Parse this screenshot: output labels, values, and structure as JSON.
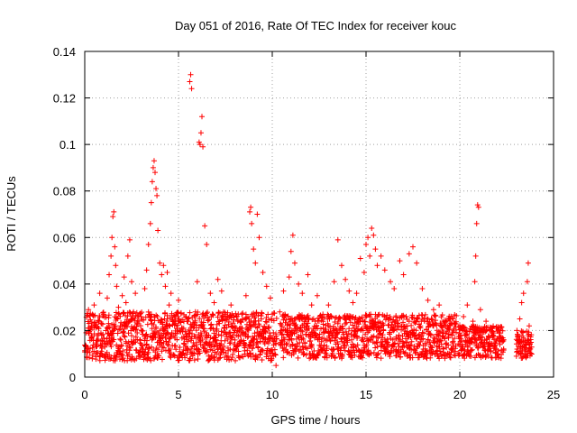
{
  "chart_data": {
    "type": "scatter",
    "title": "Day 051 of 2016, Rate Of TEC Index for receiver kouc",
    "xlabel": "GPS time / hours",
    "ylabel": "ROTI / TECUs",
    "xlim": [
      0,
      25
    ],
    "ylim": [
      0,
      0.14
    ],
    "xticks": [
      0,
      5,
      10,
      15,
      20,
      25
    ],
    "yticks": [
      0,
      0.02,
      0.04,
      0.06,
      0.08,
      0.1,
      0.12,
      0.14
    ],
    "xtick_labels": [
      "0",
      "5",
      "10",
      "15",
      "20",
      "25"
    ],
    "ytick_labels": [
      "0",
      "0.02",
      "0.04",
      "0.06",
      "0.08",
      "0.1",
      "0.12",
      "0.14"
    ],
    "grid": true,
    "marker": "+",
    "color": "#ff0000",
    "series": [
      {
        "name": "ROTI",
        "points": [
          [
            0.2,
            0.029
          ],
          [
            0.3,
            0.021
          ],
          [
            0.5,
            0.031
          ],
          [
            0.6,
            0.013
          ],
          [
            0.8,
            0.036
          ],
          [
            0.9,
            0.018
          ],
          [
            1.0,
            0.027
          ],
          [
            1.2,
            0.034
          ],
          [
            1.3,
            0.044
          ],
          [
            1.4,
            0.052
          ],
          [
            1.45,
            0.06
          ],
          [
            1.5,
            0.069
          ],
          [
            1.55,
            0.071
          ],
          [
            1.6,
            0.056
          ],
          [
            1.65,
            0.048
          ],
          [
            1.7,
            0.039
          ],
          [
            1.8,
            0.03
          ],
          [
            1.9,
            0.022
          ],
          [
            2.0,
            0.035
          ],
          [
            2.1,
            0.043
          ],
          [
            2.2,
            0.032
          ],
          [
            2.3,
            0.052
          ],
          [
            2.4,
            0.059
          ],
          [
            2.5,
            0.041
          ],
          [
            2.6,
            0.028
          ],
          [
            2.7,
            0.036
          ],
          [
            2.8,
            0.019
          ],
          [
            3.0,
            0.026
          ],
          [
            3.2,
            0.038
          ],
          [
            3.3,
            0.046
          ],
          [
            3.4,
            0.057
          ],
          [
            3.5,
            0.066
          ],
          [
            3.55,
            0.075
          ],
          [
            3.6,
            0.084
          ],
          [
            3.65,
            0.09
          ],
          [
            3.7,
            0.093
          ],
          [
            3.75,
            0.088
          ],
          [
            3.8,
            0.081
          ],
          [
            3.85,
            0.078
          ],
          [
            3.9,
            0.063
          ],
          [
            4.0,
            0.049
          ],
          [
            4.1,
            0.044
          ],
          [
            4.2,
            0.048
          ],
          [
            4.3,
            0.039
          ],
          [
            4.4,
            0.045
          ],
          [
            4.5,
            0.031
          ],
          [
            4.6,
            0.036
          ],
          [
            4.8,
            0.026
          ],
          [
            5.0,
            0.033
          ],
          [
            5.2,
            0.021
          ],
          [
            5.5,
            0.025
          ],
          [
            5.6,
            0.127
          ],
          [
            5.65,
            0.13
          ],
          [
            5.7,
            0.124
          ],
          [
            5.9,
            0.028
          ],
          [
            6.0,
            0.041
          ],
          [
            6.1,
            0.101
          ],
          [
            6.15,
            0.1
          ],
          [
            6.2,
            0.105
          ],
          [
            6.25,
            0.112
          ],
          [
            6.3,
            0.099
          ],
          [
            6.4,
            0.065
          ],
          [
            6.5,
            0.057
          ],
          [
            6.7,
            0.036
          ],
          [
            6.9,
            0.032
          ],
          [
            7.1,
            0.042
          ],
          [
            7.3,
            0.037
          ],
          [
            7.5,
            0.027
          ],
          [
            7.8,
            0.031
          ],
          [
            8.1,
            0.026
          ],
          [
            8.4,
            0.021
          ],
          [
            8.6,
            0.035
          ],
          [
            8.8,
            0.071
          ],
          [
            8.85,
            0.073
          ],
          [
            8.9,
            0.066
          ],
          [
            9.0,
            0.055
          ],
          [
            9.1,
            0.049
          ],
          [
            9.2,
            0.07
          ],
          [
            9.3,
            0.06
          ],
          [
            9.5,
            0.045
          ],
          [
            9.7,
            0.039
          ],
          [
            9.9,
            0.034
          ],
          [
            10.2,
            0.005
          ],
          [
            10.4,
            0.028
          ],
          [
            10.6,
            0.037
          ],
          [
            10.9,
            0.043
          ],
          [
            11.0,
            0.054
          ],
          [
            11.1,
            0.061
          ],
          [
            11.2,
            0.049
          ],
          [
            11.4,
            0.04
          ],
          [
            11.6,
            0.036
          ],
          [
            11.9,
            0.044
          ],
          [
            12.1,
            0.031
          ],
          [
            12.4,
            0.035
          ],
          [
            12.7,
            0.027
          ],
          [
            13.0,
            0.031
          ],
          [
            13.3,
            0.041
          ],
          [
            13.5,
            0.059
          ],
          [
            13.7,
            0.048
          ],
          [
            13.9,
            0.042
          ],
          [
            14.1,
            0.037
          ],
          [
            14.3,
            0.032
          ],
          [
            14.5,
            0.036
          ],
          [
            14.7,
            0.051
          ],
          [
            14.9,
            0.045
          ],
          [
            15.0,
            0.057
          ],
          [
            15.1,
            0.06
          ],
          [
            15.2,
            0.052
          ],
          [
            15.3,
            0.064
          ],
          [
            15.4,
            0.061
          ],
          [
            15.5,
            0.055
          ],
          [
            15.6,
            0.048
          ],
          [
            15.8,
            0.052
          ],
          [
            16.0,
            0.046
          ],
          [
            16.3,
            0.041
          ],
          [
            16.5,
            0.038
          ],
          [
            16.8,
            0.05
          ],
          [
            17.0,
            0.044
          ],
          [
            17.3,
            0.053
          ],
          [
            17.5,
            0.056
          ],
          [
            17.7,
            0.049
          ],
          [
            18.0,
            0.038
          ],
          [
            18.3,
            0.033
          ],
          [
            18.6,
            0.029
          ],
          [
            18.9,
            0.031
          ],
          [
            19.1,
            0.024
          ],
          [
            19.4,
            0.021
          ],
          [
            19.6,
            0.019
          ],
          [
            20.0,
            0.022
          ],
          [
            20.2,
            0.026
          ],
          [
            20.4,
            0.031
          ],
          [
            20.7,
            0.024
          ],
          [
            20.8,
            0.041
          ],
          [
            20.85,
            0.052
          ],
          [
            20.9,
            0.066
          ],
          [
            20.95,
            0.074
          ],
          [
            21.0,
            0.073
          ],
          [
            21.1,
            0.029
          ],
          [
            21.4,
            0.024
          ],
          [
            21.7,
            0.021
          ],
          [
            22.1,
            0.019
          ],
          [
            23.2,
            0.025
          ],
          [
            23.3,
            0.032
          ],
          [
            23.4,
            0.036
          ],
          [
            23.6,
            0.041
          ],
          [
            23.65,
            0.049
          ],
          [
            23.7,
            0.022
          ]
        ]
      }
    ],
    "dense_bands": [
      {
        "start": 0.0,
        "end": 10.2,
        "low": 0.007,
        "high": 0.028
      },
      {
        "start": 10.4,
        "end": 19.8,
        "low": 0.008,
        "high": 0.027
      },
      {
        "start": 19.9,
        "end": 22.3,
        "low": 0.008,
        "high": 0.022
      },
      {
        "start": 23.0,
        "end": 23.8,
        "low": 0.008,
        "high": 0.02
      }
    ]
  }
}
